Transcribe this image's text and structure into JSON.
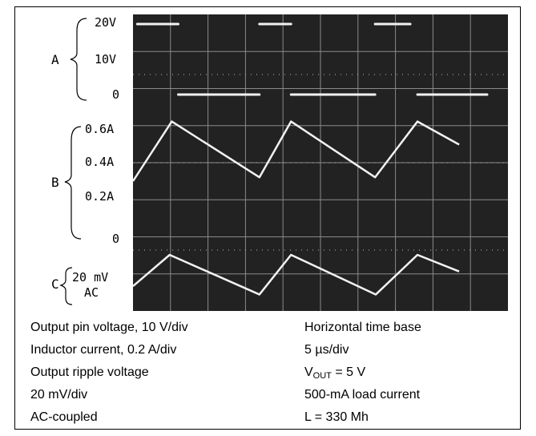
{
  "chart_data": {
    "type": "line",
    "title": "",
    "x_unit": "µs",
    "x": [
      0,
      6.3,
      17.6,
      27.4,
      29.8,
      33.7,
      35.6,
      39.6,
      49.3,
      52.2
    ],
    "channels": [
      {
        "id": "A",
        "label": "A",
        "scale": "10 V/div",
        "ticks": [
          "20V",
          "10V",
          "0"
        ],
        "ylim": [
          0,
          22
        ],
        "segments": [
          {
            "x": [
              0.6,
              6.3
            ],
            "y": [
              22,
              22
            ]
          },
          {
            "x": [
              6.3,
              17.6
            ],
            "y": [
              0,
              0
            ]
          },
          {
            "x": [
              17.6,
              22.0
            ],
            "y": [
              22,
              22
            ]
          },
          {
            "x": [
              22.0,
              33.7
            ],
            "y": [
              0,
              0
            ]
          },
          {
            "x": [
              33.7,
              38.6
            ],
            "y": [
              22,
              22
            ]
          },
          {
            "x": [
              39.6,
              49.3
            ],
            "y": [
              0,
              0
            ]
          }
        ]
      },
      {
        "id": "B",
        "label": "B",
        "scale": "0.2 A/div",
        "ticks": [
          "0.6A",
          "0.4A",
          "0.2A",
          "0"
        ],
        "ylim": [
          0,
          0.65
        ],
        "series": {
          "x": [
            0,
            5.4,
            17.6,
            22.0,
            33.7,
            39.6,
            45.4
          ],
          "y": [
            0.3,
            0.61,
            0.32,
            0.61,
            0.32,
            0.61,
            0.49
          ]
        }
      },
      {
        "id": "C",
        "label": "C",
        "scale": "20 mV/div",
        "ticks": [
          "20 mV",
          "AC"
        ],
        "series": {
          "x": [
            0,
            5.1,
            17.6,
            22.0,
            33.8,
            39.6,
            45.4
          ],
          "y": [
            -14,
            20,
            -23,
            20,
            -23,
            20,
            2
          ]
        }
      }
    ],
    "grid": true,
    "time_base": "5 µs/div"
  },
  "captions": {
    "left": [
      "Output pin voltage, 10 V/div",
      "Inductor current, 0.2 A/div",
      "Output ripple voltage",
      "20 mV/div",
      "AC-coupled"
    ],
    "right_line1": "Horizontal time base",
    "right_line2": "5 µs/div",
    "vout_prefix": "V",
    "vout_sub": "OUT",
    "vout_suffix": " = 5 V",
    "right_line4": "500-mA load current",
    "right_line5": "L = 330 Mh"
  }
}
